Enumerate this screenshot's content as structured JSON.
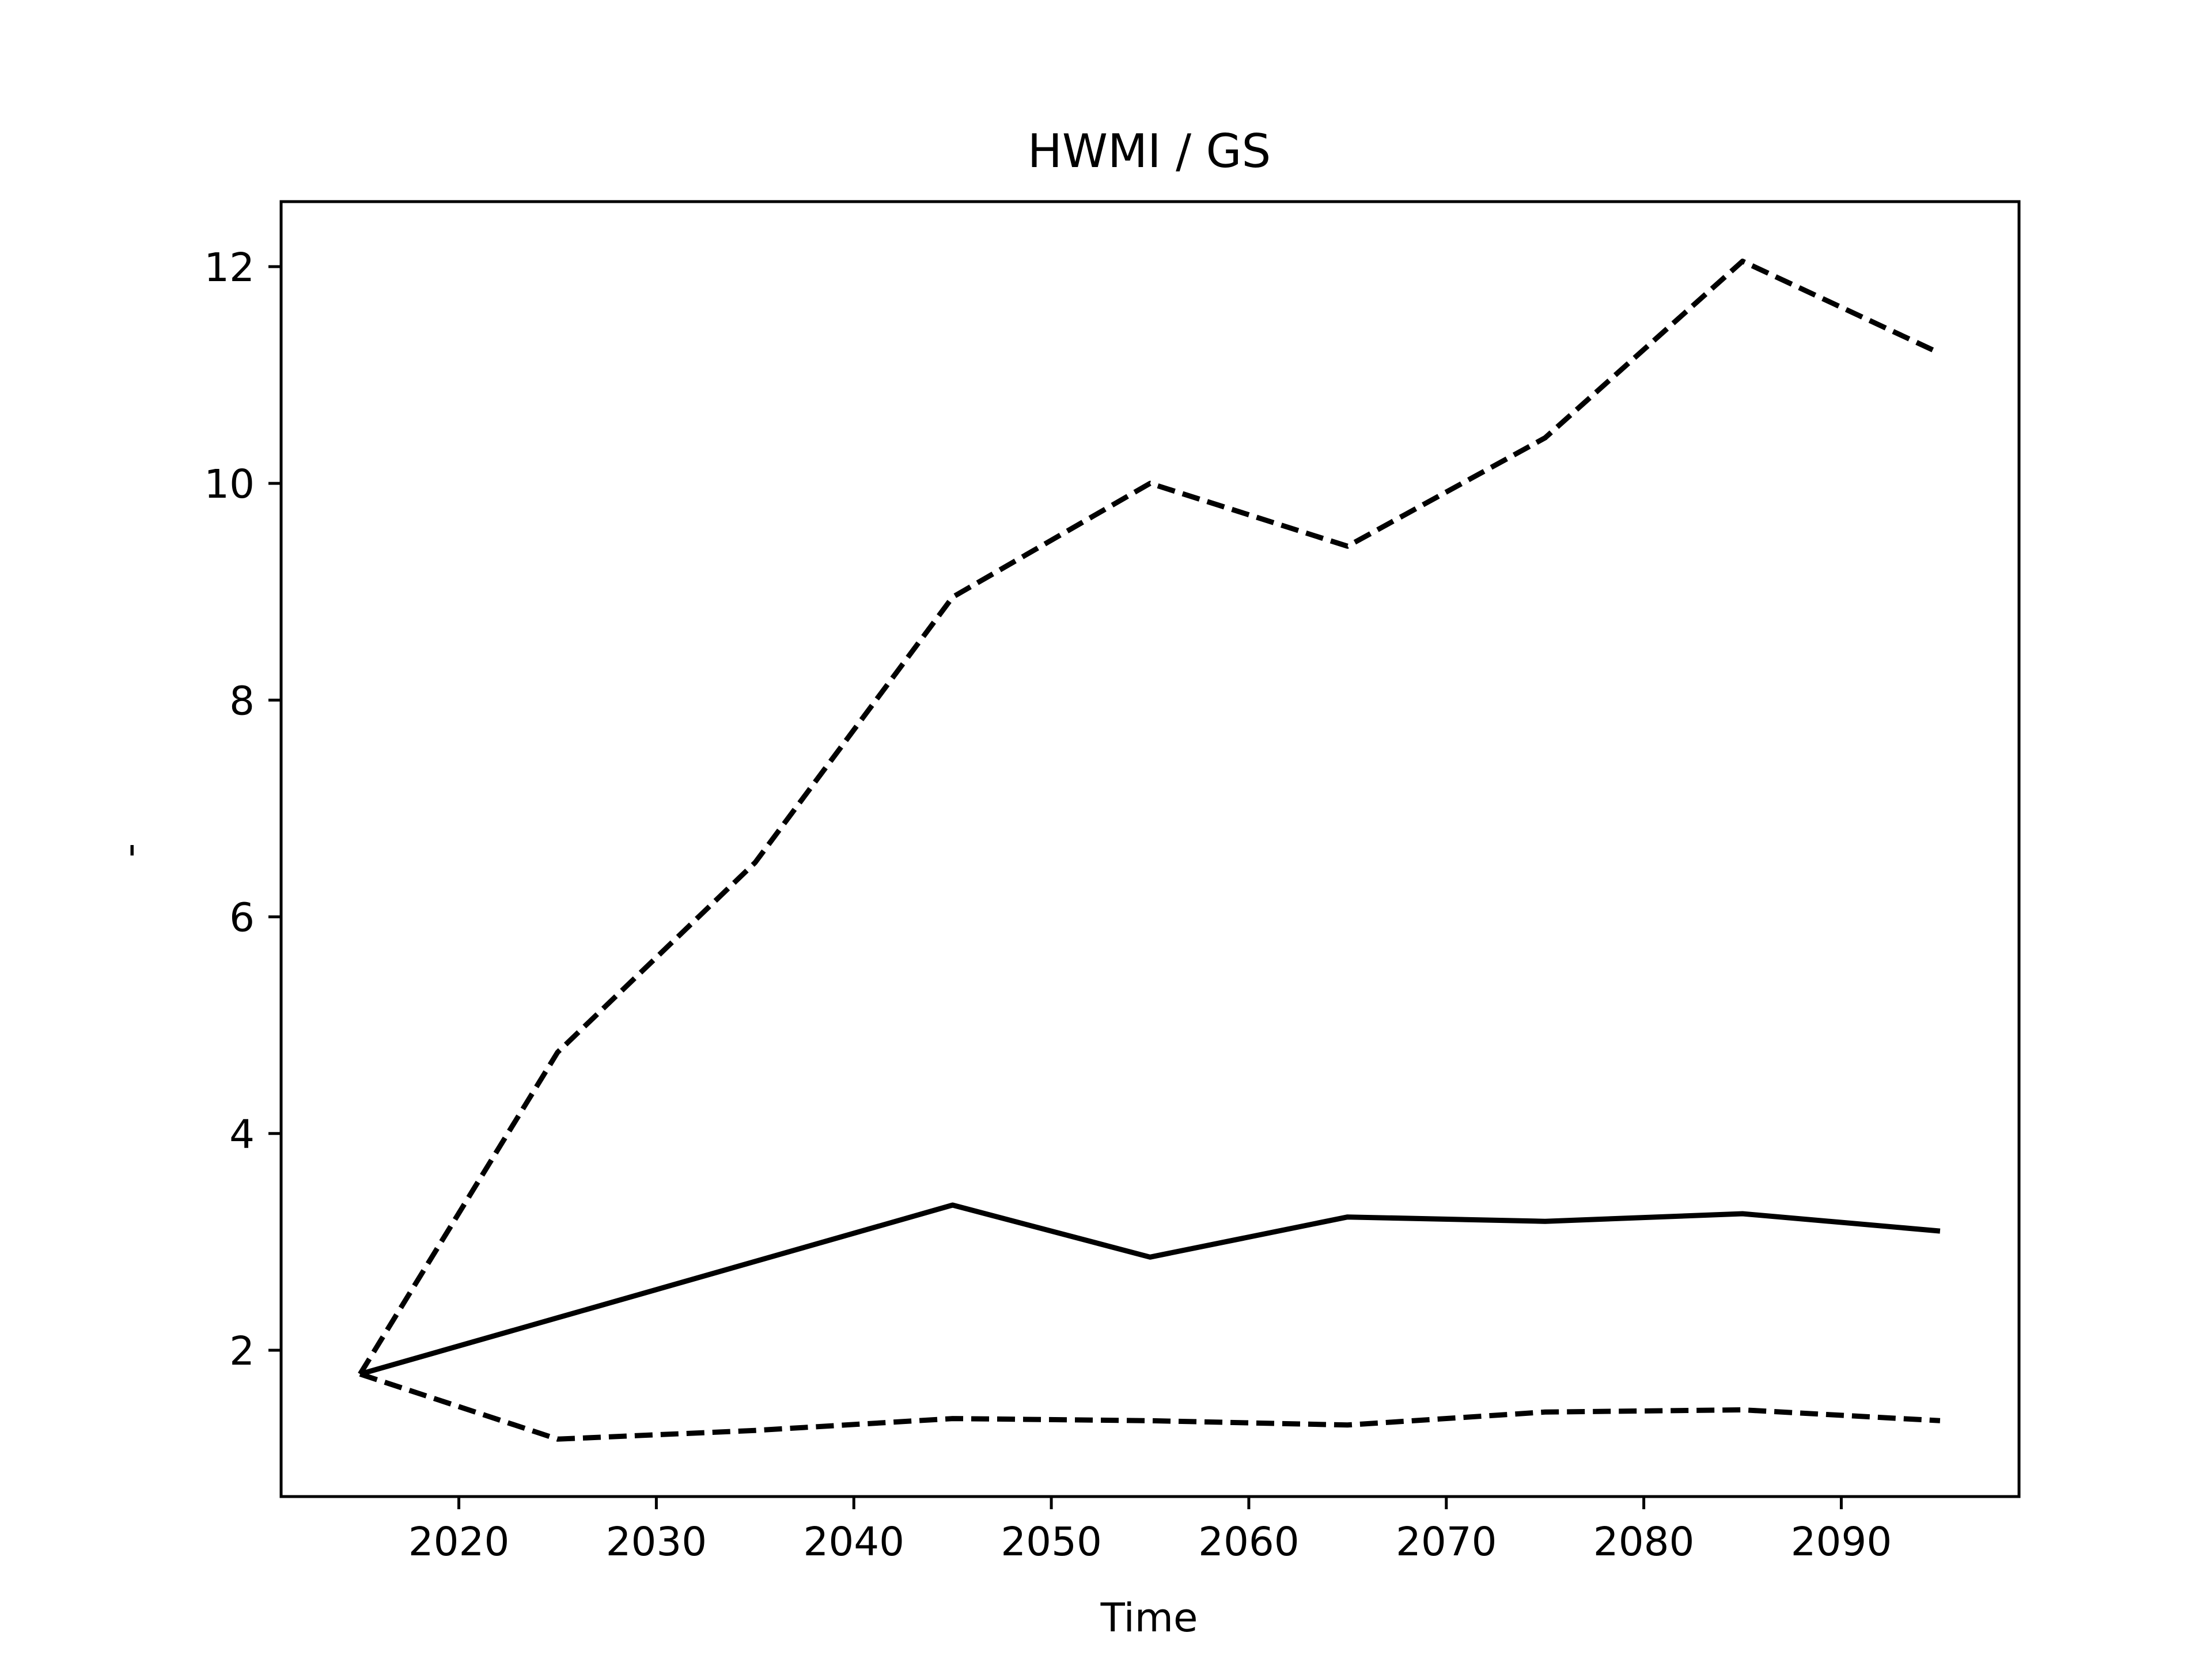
{
  "chart_data": {
    "type": "line",
    "title": "HWMI / GS",
    "xlabel": "Time",
    "ylabel": "-",
    "xlim": [
      2011,
      2099
    ],
    "ylim": [
      0.65,
      12.6
    ],
    "x_ticks": [
      2020,
      2030,
      2040,
      2050,
      2060,
      2070,
      2080,
      2090
    ],
    "y_ticks": [
      2,
      4,
      6,
      8,
      10,
      12
    ],
    "grid": false,
    "legend": null,
    "series": [
      {
        "style": "solid",
        "color": "#000000",
        "x": [
          2015,
          2025,
          2035,
          2045,
          2055,
          2065,
          2075,
          2085,
          2095
        ],
        "y": [
          1.78,
          2.3,
          2.82,
          3.34,
          2.86,
          3.23,
          3.19,
          3.26,
          3.1
        ]
      },
      {
        "style": "dashed",
        "color": "#000000",
        "x": [
          2015,
          2025,
          2035,
          2045,
          2055,
          2065,
          2075,
          2085,
          2095
        ],
        "y": [
          1.78,
          4.75,
          6.5,
          8.95,
          10.0,
          9.42,
          10.42,
          12.05,
          11.2
        ]
      },
      {
        "style": "dashed",
        "color": "#000000",
        "x": [
          2015,
          2025,
          2035,
          2045,
          2055,
          2065,
          2075,
          2085,
          2095
        ],
        "y": [
          1.78,
          1.18,
          1.26,
          1.37,
          1.35,
          1.31,
          1.43,
          1.45,
          1.35
        ]
      }
    ]
  }
}
